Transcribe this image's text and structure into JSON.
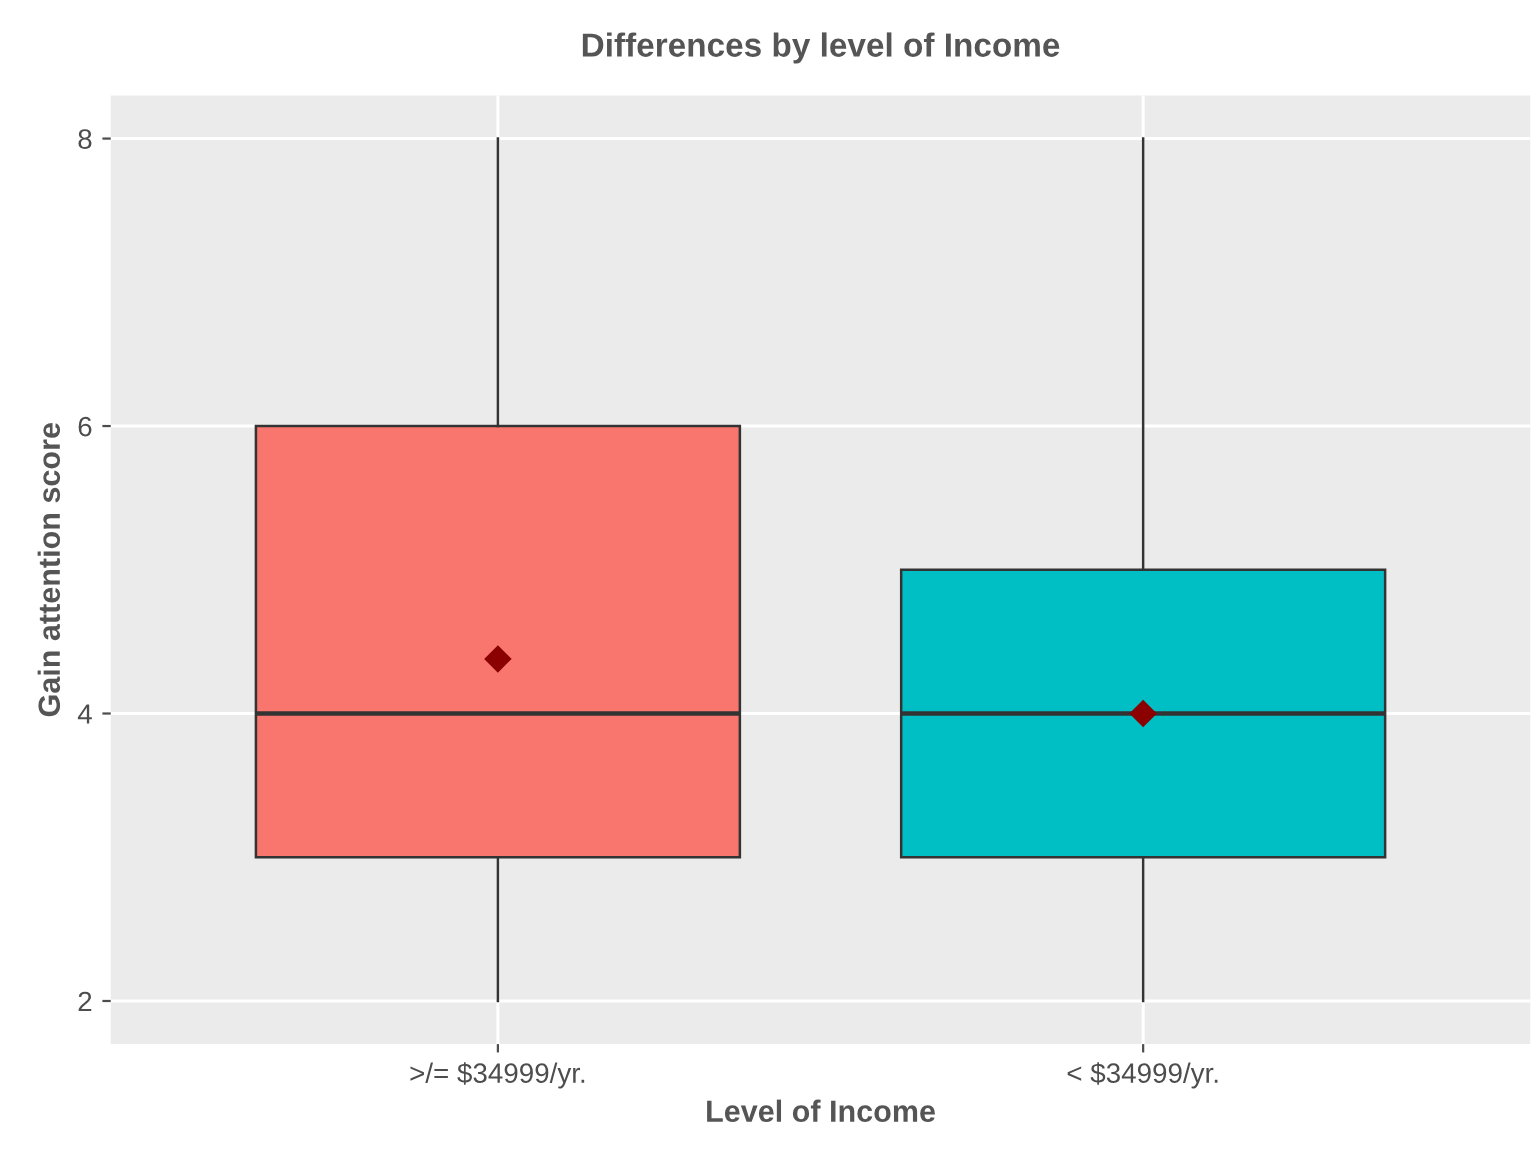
{
  "chart_data": {
    "type": "box",
    "title": "Differences by level of Income",
    "xlabel": "Level of Income",
    "ylabel": "Gain attention score",
    "categories": [
      ">/= $34999/yr.",
      "< $34999/yr."
    ],
    "boxes": [
      {
        "low": 2,
        "q1": 3,
        "median": 4,
        "q3": 6,
        "high": 8,
        "mean": 4.38
      },
      {
        "low": 2,
        "q1": 3,
        "median": 4,
        "q3": 5,
        "high": 8,
        "mean": 4.0
      }
    ],
    "colors": [
      "#f8766d",
      "#00bfc4"
    ],
    "ylim": [
      1.7,
      8.3
    ],
    "yticks": [
      2,
      4,
      6,
      8
    ],
    "grid": true,
    "legend": false
  }
}
